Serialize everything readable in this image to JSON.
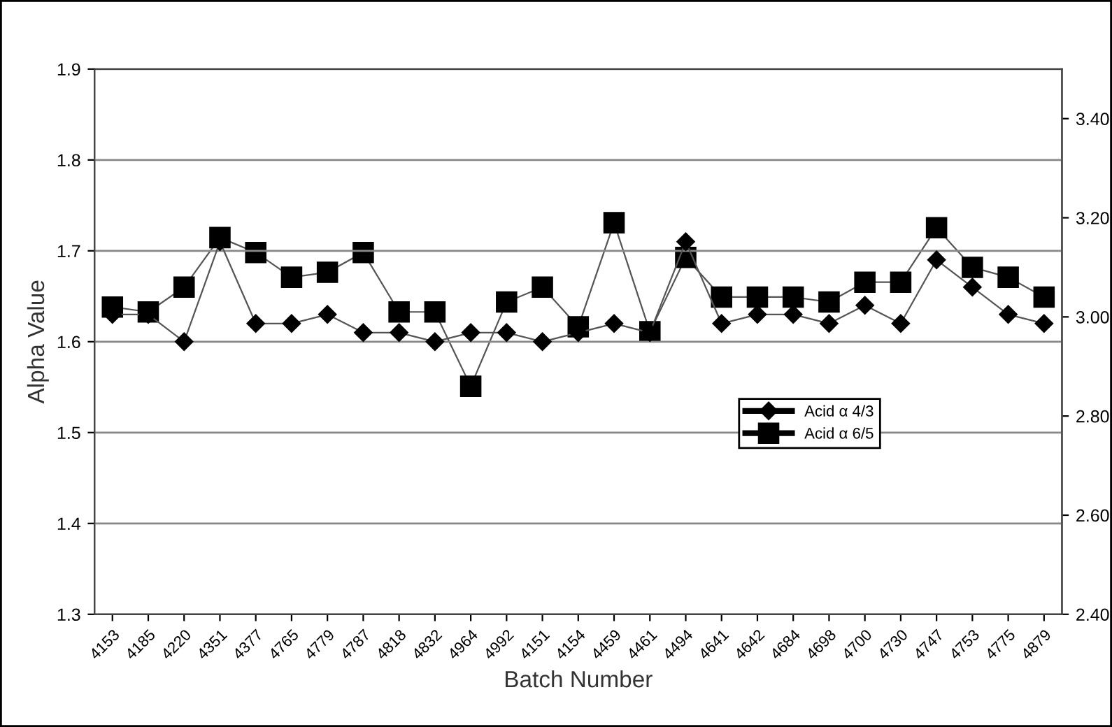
{
  "chart_data": {
    "type": "line",
    "xlabel": "Batch Number",
    "ylabel": "Alpha Value",
    "categories": [
      "4153",
      "4185",
      "4220",
      "4351",
      "4377",
      "4765",
      "4779",
      "4787",
      "4818",
      "4832",
      "4964",
      "4992",
      "4151",
      "4154",
      "4459",
      "4461",
      "4494",
      "4641",
      "4642",
      "4684",
      "4698",
      "4700",
      "4730",
      "4747",
      "4753",
      "4775",
      "4879"
    ],
    "series": [
      {
        "name": "Acid α 4/3",
        "color": "#000000",
        "marker": "diamond",
        "values": [
          1.63,
          1.63,
          1.6,
          1.71,
          1.62,
          1.62,
          1.63,
          1.61,
          1.61,
          1.6,
          1.61,
          1.61,
          1.6,
          1.61,
          1.62,
          1.61,
          1.71,
          1.62,
          1.63,
          1.63,
          1.62,
          1.64,
          1.62,
          1.69,
          1.66,
          1.63,
          1.62
        ]
      },
      {
        "name": "Acid α 6/5",
        "color": "#000000",
        "marker": "square",
        "axis": "y2",
        "values": [
          3.02,
          3.01,
          3.06,
          3.16,
          3.13,
          3.08,
          3.09,
          3.13,
          3.01,
          3.01,
          2.86,
          3.03,
          3.06,
          2.98,
          3.19,
          2.97,
          3.12,
          3.04,
          3.04,
          3.04,
          3.03,
          3.07,
          3.07,
          3.18,
          3.1,
          3.08,
          3.04
        ]
      }
    ],
    "ylim": [
      1.3,
      1.9
    ],
    "yticks": [
      1.3,
      1.4,
      1.5,
      1.6,
      1.7,
      1.8,
      1.9
    ],
    "y2lim": [
      2.4,
      3.5
    ],
    "y2ticks": [
      {
        "value": 2.4,
        "label": "2.40"
      },
      {
        "value": 2.6,
        "label": "2.60"
      },
      {
        "value": 2.8,
        "label": "2.80"
      },
      {
        "value": 3.0,
        "label": "3.00"
      },
      {
        "value": 3.2,
        "label": "3.20"
      },
      {
        "value": 3.4,
        "label": "3.40"
      }
    ],
    "grid": "y",
    "legend": "center right",
    "line_style": "solid"
  }
}
